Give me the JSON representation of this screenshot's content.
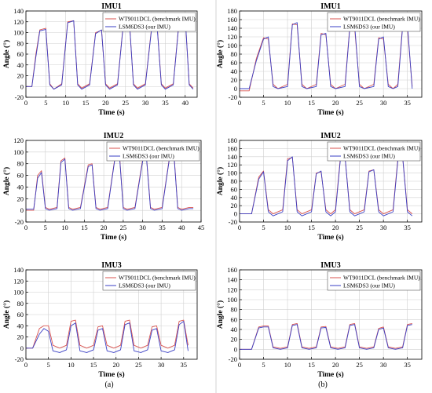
{
  "colors": {
    "benchmark": "#d9534f",
    "ours": "#3a3fc4",
    "grid": "#d0d0d0",
    "frame": "#000000"
  },
  "figure": {
    "captions": [
      "(a)",
      "(b)"
    ]
  },
  "chart_data": [
    {
      "id": "a1",
      "type": "line",
      "title": "IMU1",
      "xlabel": "Time (s)",
      "ylabel": "Angle (°)",
      "xlim": [
        0,
        43
      ],
      "ylim": [
        -20,
        140
      ],
      "xticks": [
        0,
        5,
        10,
        15,
        20,
        25,
        30,
        35,
        40
      ],
      "yticks": [
        -20,
        0,
        20,
        40,
        60,
        80,
        100,
        120,
        140
      ],
      "grid": true,
      "legend_position": "top-right",
      "legend": [
        "WT9011DCL (benchmark IMU)",
        "LSM6DS3 (our IMU)"
      ],
      "series": [
        {
          "name": "WT9011DCL (benchmark IMU)",
          "x": [
            0,
            1.5,
            2.5,
            3.5,
            5,
            6,
            7,
            9,
            10.5,
            12,
            13,
            14,
            16,
            17.5,
            19,
            20,
            21,
            23,
            24.5,
            26,
            27,
            28,
            30,
            31.5,
            33,
            34,
            35,
            37,
            38.5,
            40,
            41,
            42
          ],
          "y": [
            0,
            0,
            60,
            105,
            108,
            5,
            -5,
            5,
            120,
            122,
            5,
            -3,
            5,
            100,
            104,
            5,
            -3,
            5,
            120,
            118,
            5,
            -3,
            5,
            105,
            108,
            5,
            -3,
            5,
            125,
            127,
            5,
            -3
          ]
        },
        {
          "name": "LSM6DS3 (our IMU)",
          "x": [
            0,
            1.5,
            2.5,
            3.5,
            5,
            6,
            7,
            9,
            10.5,
            12,
            13,
            14,
            16,
            17.5,
            19,
            20,
            21,
            23,
            24.5,
            26,
            27,
            28,
            30,
            31.5,
            33,
            34,
            35,
            37,
            38.5,
            40,
            41,
            42
          ],
          "y": [
            0,
            0,
            55,
            103,
            106,
            3,
            -5,
            3,
            118,
            122,
            3,
            -5,
            3,
            98,
            105,
            3,
            -5,
            3,
            118,
            120,
            3,
            -5,
            3,
            103,
            106,
            3,
            -5,
            3,
            123,
            128,
            3,
            -5
          ]
        }
      ]
    },
    {
      "id": "b1",
      "type": "line",
      "title": "IMU1",
      "xlabel": "Time (s)",
      "ylabel": "Angle (°)",
      "xlim": [
        0,
        38
      ],
      "ylim": [
        -20,
        180
      ],
      "xticks": [
        0,
        5,
        10,
        15,
        20,
        25,
        30,
        35
      ],
      "yticks": [
        -20,
        0,
        20,
        40,
        60,
        80,
        100,
        120,
        140,
        160,
        180
      ],
      "grid": true,
      "legend_position": "top-right",
      "legend": [
        "WT9011DCL (benchmark IMU)",
        "LSM6DS3 (our IMU)"
      ],
      "series": [
        {
          "name": "WT9011DCL (benchmark IMU)",
          "x": [
            0,
            2,
            3.5,
            5,
            6,
            7,
            8,
            10,
            11,
            12,
            13,
            14,
            16,
            17,
            18,
            19,
            20,
            22,
            23,
            24,
            25,
            26,
            28,
            29,
            30,
            31,
            32,
            33,
            34,
            35,
            36
          ],
          "y": [
            -5,
            -5,
            70,
            118,
            115,
            10,
            0,
            10,
            150,
            148,
            10,
            0,
            10,
            128,
            125,
            10,
            0,
            10,
            145,
            140,
            10,
            0,
            10,
            118,
            115,
            10,
            0,
            10,
            148,
            140,
            5
          ]
        },
        {
          "name": "LSM6DS3 (our IMU)",
          "x": [
            0,
            2,
            3.5,
            5,
            6,
            7,
            8,
            10,
            11,
            12,
            13,
            14,
            16,
            17,
            18,
            19,
            20,
            22,
            23,
            24,
            25,
            26,
            28,
            29,
            30,
            31,
            32,
            33,
            34,
            35,
            36
          ],
          "y": [
            0,
            0,
            65,
            115,
            120,
            5,
            0,
            5,
            148,
            153,
            5,
            0,
            5,
            125,
            128,
            5,
            0,
            5,
            142,
            148,
            5,
            0,
            5,
            115,
            120,
            5,
            0,
            5,
            143,
            150,
            0
          ]
        }
      ]
    },
    {
      "id": "a2",
      "type": "line",
      "title": "IMU2",
      "xlabel": "Time (s)",
      "ylabel": "Angle (°)",
      "xlim": [
        0,
        45
      ],
      "ylim": [
        -20,
        120
      ],
      "xticks": [
        0,
        5,
        10,
        15,
        20,
        25,
        30,
        35,
        40,
        45
      ],
      "yticks": [
        -20,
        0,
        20,
        40,
        60,
        80,
        100,
        120
      ],
      "grid": true,
      "legend_position": "top-right",
      "legend": [
        "WT9011DCL (benchmark IMU)",
        "LSM6DS3 (our IMU)"
      ],
      "series": [
        {
          "name": "WT9011DCL (benchmark IMU)",
          "x": [
            0,
            2,
            3,
            4,
            5,
            6,
            8,
            9,
            10,
            11,
            12,
            14,
            16,
            17,
            18,
            19,
            21,
            23,
            24,
            25,
            26,
            28,
            30,
            31,
            32,
            33,
            35,
            37,
            38,
            39,
            40,
            42,
            43
          ],
          "y": [
            0,
            0,
            60,
            68,
            5,
            2,
            5,
            85,
            90,
            5,
            2,
            5,
            78,
            80,
            5,
            2,
            5,
            97,
            100,
            5,
            2,
            5,
            88,
            90,
            5,
            2,
            5,
            97,
            100,
            5,
            2,
            5,
            5
          ]
        },
        {
          "name": "LSM6DS3 (our IMU)",
          "x": [
            0,
            2,
            3,
            4,
            5,
            6,
            8,
            9,
            10,
            11,
            12,
            14,
            16,
            17,
            18,
            19,
            21,
            23,
            24,
            25,
            26,
            28,
            30,
            31,
            32,
            33,
            35,
            37,
            38,
            39,
            40,
            42,
            43
          ],
          "y": [
            2,
            2,
            55,
            65,
            3,
            0,
            3,
            82,
            88,
            3,
            0,
            3,
            75,
            78,
            3,
            0,
            3,
            95,
            98,
            3,
            0,
            3,
            85,
            88,
            3,
            0,
            3,
            95,
            98,
            3,
            0,
            3,
            3
          ]
        }
      ]
    },
    {
      "id": "b2",
      "type": "line",
      "title": "IMU2",
      "xlabel": "Time (s)",
      "ylabel": "Angle (°)",
      "xlim": [
        0,
        38
      ],
      "ylim": [
        -20,
        180
      ],
      "xticks": [
        0,
        5,
        10,
        15,
        20,
        25,
        30,
        35
      ],
      "yticks": [
        -20,
        0,
        20,
        40,
        60,
        80,
        100,
        120,
        140,
        160,
        180
      ],
      "grid": true,
      "legend_position": "top-right",
      "legend": [
        "WT9011DCL (benchmark IMU)",
        "LSM6DS3 (our IMU)"
      ],
      "series": [
        {
          "name": "WT9011DCL (benchmark IMU)",
          "x": [
            0,
            2.5,
            4,
            5,
            6,
            7,
            9,
            10,
            11,
            12,
            13,
            15,
            16,
            17,
            18,
            19,
            20,
            21,
            22,
            23,
            24,
            26,
            27,
            28,
            29,
            30,
            32,
            33,
            34,
            35,
            36
          ],
          "y": [
            0,
            0,
            90,
            105,
            10,
            0,
            10,
            135,
            138,
            10,
            0,
            10,
            100,
            103,
            10,
            0,
            10,
            135,
            138,
            10,
            0,
            10,
            105,
            108,
            10,
            0,
            10,
            135,
            140,
            10,
            0
          ]
        },
        {
          "name": "LSM6DS3 (our IMU)",
          "x": [
            0,
            2.5,
            4,
            5,
            6,
            7,
            9,
            10,
            11,
            12,
            13,
            15,
            16,
            17,
            18,
            19,
            20,
            21,
            22,
            23,
            24,
            26,
            27,
            28,
            29,
            30,
            32,
            33,
            34,
            35,
            36
          ],
          "y": [
            0,
            0,
            85,
            103,
            5,
            -5,
            5,
            130,
            140,
            5,
            -5,
            5,
            98,
            105,
            5,
            -5,
            5,
            130,
            140,
            5,
            -5,
            5,
            103,
            108,
            5,
            -5,
            5,
            130,
            140,
            5,
            -5
          ]
        }
      ]
    },
    {
      "id": "a3",
      "type": "line",
      "title": "IMU3",
      "xlabel": "Time (s)",
      "ylabel": "Angle (°)",
      "xlim": [
        0,
        38
      ],
      "ylim": [
        -20,
        140
      ],
      "xticks": [
        0,
        5,
        10,
        15,
        20,
        25,
        30,
        35
      ],
      "yticks": [
        -20,
        0,
        20,
        40,
        60,
        80,
        100,
        120,
        140
      ],
      "grid": true,
      "legend_position": "top-right",
      "legend": [
        "WT9011DCL (benchmark IMU)",
        "LSM6DS3 (our IMU)"
      ],
      "series": [
        {
          "name": "WT9011DCL (benchmark IMU)",
          "x": [
            0,
            1.5,
            3,
            4,
            5,
            6,
            7.5,
            9,
            10,
            11,
            12,
            13.5,
            15,
            16,
            17,
            18,
            19.5,
            21,
            22,
            23,
            24,
            25.5,
            27,
            28,
            29,
            30,
            31.5,
            33,
            34,
            35,
            36
          ],
          "y": [
            0,
            0,
            35,
            40,
            40,
            5,
            0,
            5,
            48,
            50,
            5,
            0,
            5,
            38,
            40,
            5,
            0,
            5,
            48,
            50,
            5,
            0,
            5,
            38,
            40,
            5,
            0,
            5,
            48,
            50,
            5
          ]
        },
        {
          "name": "LSM6DS3 (our IMU)",
          "x": [
            0,
            1.5,
            3,
            4,
            5,
            6,
            7.5,
            9,
            10,
            11,
            12,
            13.5,
            15,
            16,
            17,
            18,
            19.5,
            21,
            22,
            23,
            24,
            25.5,
            27,
            28,
            29,
            30,
            31.5,
            33,
            34,
            35,
            36
          ],
          "y": [
            0,
            0,
            25,
            35,
            30,
            -5,
            -8,
            -3,
            40,
            45,
            -5,
            -8,
            -3,
            32,
            35,
            -5,
            -8,
            -3,
            42,
            45,
            -5,
            -8,
            -3,
            32,
            35,
            -5,
            -8,
            -3,
            42,
            48,
            -5
          ]
        }
      ]
    },
    {
      "id": "b3",
      "type": "line",
      "title": "IMU3",
      "xlabel": "Time (s)",
      "ylabel": "Angle (°)",
      "xlim": [
        0,
        38
      ],
      "ylim": [
        -20,
        160
      ],
      "xticks": [
        0,
        5,
        10,
        15,
        20,
        25,
        30,
        35
      ],
      "yticks": [
        -20,
        0,
        20,
        40,
        60,
        80,
        100,
        120,
        140,
        160
      ],
      "grid": true,
      "legend_position": "top-right",
      "legend": [
        "WT9011DCL (benchmark IMU)",
        "LSM6DS3 (our IMU)"
      ],
      "series": [
        {
          "name": "WT9011DCL (benchmark IMU)",
          "x": [
            0,
            2.5,
            4,
            5,
            6,
            7,
            8.5,
            10,
            11,
            12,
            13,
            14.5,
            16,
            17,
            18,
            19,
            20.5,
            22,
            23,
            24,
            25,
            26.5,
            28,
            29,
            30,
            31,
            32.5,
            34,
            35,
            36
          ],
          "y": [
            0,
            0,
            45,
            47,
            47,
            5,
            2,
            5,
            50,
            52,
            5,
            2,
            5,
            45,
            46,
            5,
            2,
            5,
            50,
            52,
            5,
            2,
            5,
            42,
            45,
            5,
            2,
            5,
            50,
            52
          ]
        },
        {
          "name": "LSM6DS3 (our IMU)",
          "x": [
            0,
            2.5,
            4,
            5,
            6,
            7,
            8.5,
            10,
            11,
            12,
            13,
            14.5,
            16,
            17,
            18,
            19,
            20.5,
            22,
            23,
            24,
            25,
            26.5,
            28,
            29,
            30,
            31,
            32.5,
            34,
            35,
            36
          ],
          "y": [
            0,
            0,
            43,
            45,
            45,
            3,
            0,
            3,
            48,
            50,
            3,
            0,
            3,
            43,
            44,
            3,
            0,
            3,
            48,
            50,
            3,
            0,
            3,
            40,
            43,
            3,
            0,
            3,
            48,
            50
          ]
        }
      ]
    }
  ]
}
